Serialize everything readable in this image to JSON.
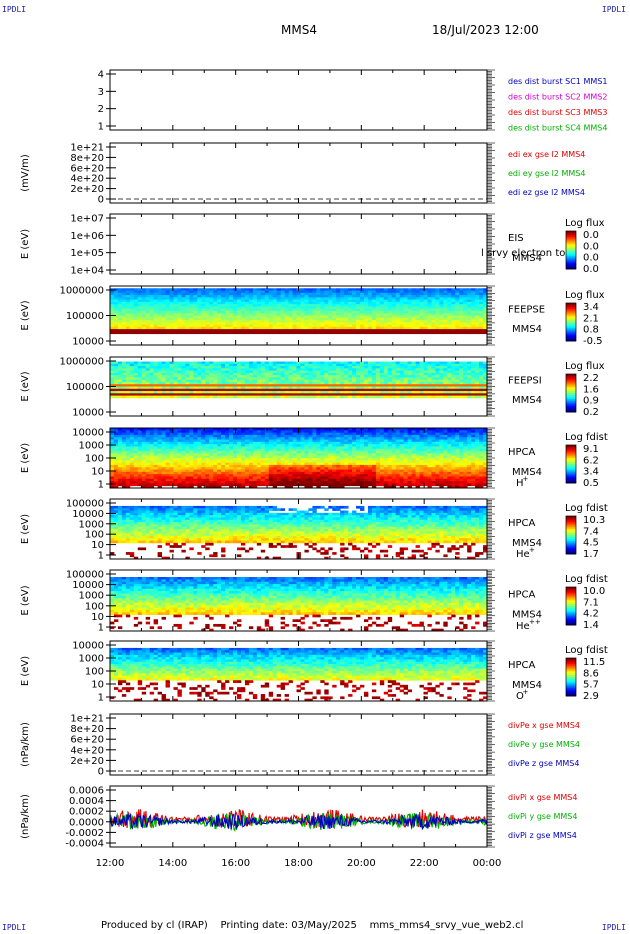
{
  "corner_label": "IPDLI",
  "header": {
    "mission": "MMS4",
    "datetime": "18/Jul/2023 12:00"
  },
  "footer": {
    "produced": "Produced by cl (IRAP)",
    "printed": "Printing date: 03/May/2025",
    "file": "mms_mms4_srvy_vue_web2.cl"
  },
  "colors": {
    "red": "#e00000",
    "green": "#00b000",
    "blue": "#0000c0",
    "magenta": "#d000d0"
  },
  "chart_data": [
    {
      "type": "line",
      "panel": "availability",
      "ylim": [
        0.5,
        4.5
      ],
      "yticks": [
        "4",
        "3",
        "2",
        "1"
      ],
      "legend": [
        {
          "text": "des dist burst SC1 MMS1",
          "color": "#0000c0"
        },
        {
          "text": "des dist burst SC2 MMS2",
          "color": "#d000d0"
        },
        {
          "text": "des dist burst SC3 MMS3",
          "color": "#e00000"
        },
        {
          "text": "des dist burst SC4 MMS4",
          "color": "#00b000"
        }
      ],
      "series": []
    },
    {
      "type": "line",
      "panel": "edi-efield",
      "ylabel": "(mV/m)",
      "yticks": [
        "1e+21",
        "8e+20",
        "6e+20",
        "4e+20",
        "2e+20",
        "0"
      ],
      "ylim": [
        0,
        1e+21
      ],
      "legend": [
        {
          "text": "edi ex gse l2 MMS4",
          "color": "#e00000"
        },
        {
          "text": "edi ey gse l2 MMS4",
          "color": "#00b000"
        },
        {
          "text": "edi ez gse l2 MMS4",
          "color": "#0000c0"
        }
      ],
      "series": []
    },
    {
      "type": "heatmap",
      "panel": "eis",
      "ylabel": "E (eV)",
      "yticks": [
        "1e+07",
        "1e+06",
        "1e+05",
        "1e+04"
      ],
      "log_y": true,
      "labels": [
        "EIS",
        "MMS4"
      ],
      "overlay_text": "l srvy electron to",
      "colorbar": {
        "title": "Log flux",
        "ticks": [
          "0.0",
          "0.0",
          "0.0",
          "0.0"
        ]
      }
    },
    {
      "type": "heatmap",
      "panel": "feepse",
      "ylabel": "E (eV)",
      "yticks": [
        "1000000",
        "100000",
        "10000"
      ],
      "log_y": true,
      "labels": [
        "FEEPSE",
        "MMS4"
      ],
      "colorbar": {
        "title": "Log flux",
        "ticks": [
          "3.4",
          "2.1",
          "0.8",
          "-0.5"
        ]
      }
    },
    {
      "type": "heatmap",
      "panel": "feepsi",
      "ylabel": "E (eV)",
      "yticks": [
        "1000000",
        "100000",
        "10000"
      ],
      "log_y": true,
      "labels": [
        "FEEPSI",
        "MMS4"
      ],
      "colorbar": {
        "title": "Log flux",
        "ticks": [
          "2.2",
          "1.6",
          "0.9",
          "0.2"
        ]
      }
    },
    {
      "type": "heatmap",
      "panel": "hpca-h",
      "ylabel": "E (eV)",
      "yticks": [
        "10000",
        "1000",
        "100",
        "10",
        "1"
      ],
      "log_y": true,
      "labels": [
        "HPCA",
        "MMS4"
      ],
      "species": "H",
      "charge": "+",
      "colorbar": {
        "title": "Log fdist",
        "ticks": [
          "9.1",
          "6.2",
          "3.4",
          "0.5"
        ]
      }
    },
    {
      "type": "heatmap",
      "panel": "hpca-he",
      "ylabel": "E (eV)",
      "yticks": [
        "100000",
        "10000",
        "1000",
        "100",
        "10",
        "1"
      ],
      "log_y": true,
      "labels": [
        "HPCA",
        "MMS4"
      ],
      "species": "He",
      "charge": "+",
      "colorbar": {
        "title": "Log fdist",
        "ticks": [
          "10.3",
          "7.4",
          "4.5",
          "1.7"
        ]
      }
    },
    {
      "type": "heatmap",
      "panel": "hpca-he2",
      "ylabel": "E (eV)",
      "yticks": [
        "100000",
        "10000",
        "1000",
        "100",
        "10",
        "1"
      ],
      "log_y": true,
      "labels": [
        "HPCA",
        "MMS4"
      ],
      "species": "He",
      "charge": "++",
      "colorbar": {
        "title": "Log fdist",
        "ticks": [
          "10.0",
          "7.1",
          "4.2",
          "1.4"
        ]
      }
    },
    {
      "type": "heatmap",
      "panel": "hpca-o",
      "ylabel": "E (eV)",
      "yticks": [
        "10000",
        "1000",
        "100",
        "10",
        "1"
      ],
      "log_y": true,
      "labels": [
        "HPCA",
        "MMS4"
      ],
      "species": "O",
      "charge": "+",
      "colorbar": {
        "title": "Log fdist",
        "ticks": [
          "11.5",
          "8.6",
          "5.7",
          "2.9"
        ]
      }
    },
    {
      "type": "line",
      "panel": "divpe",
      "ylabel": "(nPa/km)",
      "yticks": [
        "1e+21",
        "8e+20",
        "6e+20",
        "4e+20",
        "2e+20",
        "0"
      ],
      "ylim": [
        0,
        1e+21
      ],
      "legend": [
        {
          "text": "divPe x gse MMS4",
          "color": "#e00000"
        },
        {
          "text": "divPe y gse MMS4",
          "color": "#00b000"
        },
        {
          "text": "divPe z gse MMS4",
          "color": "#0000c0"
        }
      ],
      "series": []
    },
    {
      "type": "line",
      "panel": "divpi",
      "ylabel": "(nPa/km)",
      "yticks": [
        "0.0006",
        "0.0004",
        "0.0002",
        "0.0000",
        "-0.0002",
        "-0.0004"
      ],
      "ylim": [
        -0.0005,
        0.0007
      ],
      "legend": [
        {
          "text": "divPi x gse MMS4",
          "color": "#e00000"
        },
        {
          "text": "divPi y gse MMS4",
          "color": "#00b000"
        },
        {
          "text": "divPi z gse MMS4",
          "color": "#0000c0"
        }
      ],
      "series": [
        {
          "color": "#e00000",
          "mean": 5e-05,
          "amplitude": 0.0002
        },
        {
          "color": "#00b000",
          "mean": 0.0,
          "amplitude": 0.00018
        },
        {
          "color": "#0000c0",
          "mean": 0.0,
          "amplitude": 0.00015
        }
      ]
    }
  ],
  "xaxis": {
    "ticks": [
      "12:00",
      "14:00",
      "16:00",
      "18:00",
      "20:00",
      "22:00",
      "00:00"
    ]
  }
}
